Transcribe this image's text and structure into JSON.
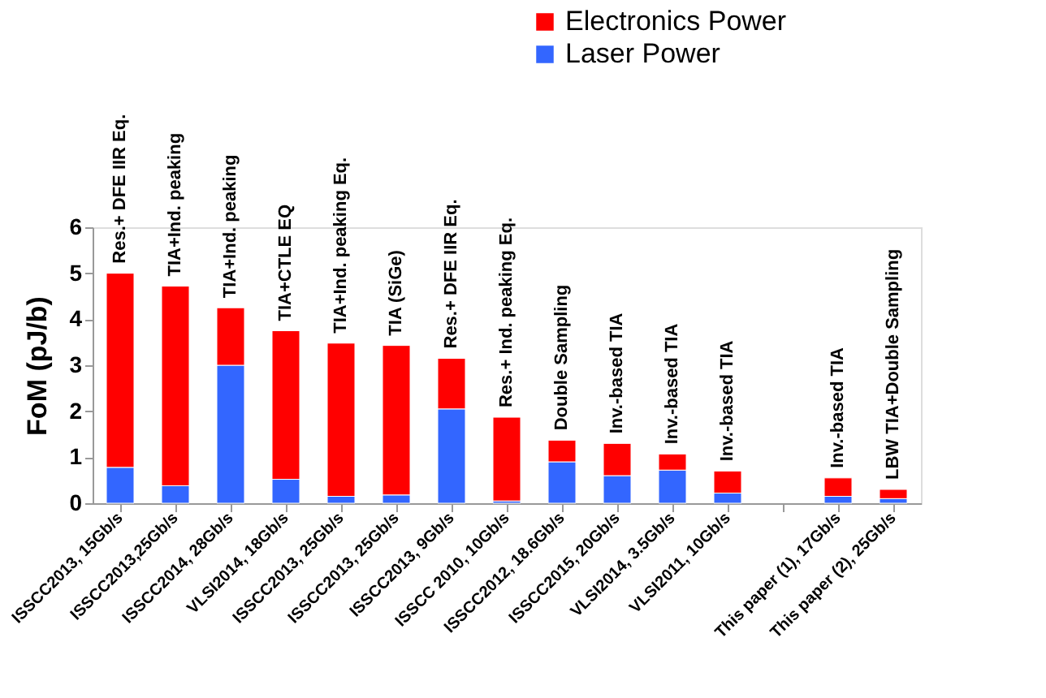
{
  "chart_data": {
    "type": "bar",
    "stacked": true,
    "ylabel": "FoM (pJ/b)",
    "ylim": [
      0,
      6
    ],
    "yticks": [
      0,
      1,
      2,
      3,
      4,
      5,
      6
    ],
    "grid": false,
    "legend": "top right",
    "categories": [
      "ISSCC2013, 15Gb/s",
      "ISSCC2013,25Gb/s",
      "ISSCC2014, 28Gb/s",
      "VLSI2014, 18Gb/s",
      "ISSCC2013, 25Gb/s",
      "ISSCC2013, 25Gb/s",
      "ISSCC2013, 9Gb/s",
      "ISSCC 2010, 10Gb/s",
      "ISSCC2012, 18.6Gb/s",
      "ISSCC2015, 20Gb/s",
      "VLSI2014, 3.5Gb/s",
      "VLSI2011, 10Gb/s",
      null,
      "This paper (1), 17Gb/s",
      "This paper (2), 25Gb/s"
    ],
    "series": [
      {
        "name": "Laser Power",
        "color": "#3366ff",
        "values": [
          0.78,
          0.38,
          3.0,
          0.52,
          0.15,
          0.18,
          2.05,
          0.05,
          0.9,
          0.6,
          0.72,
          0.22,
          null,
          0.15,
          0.1
        ]
      },
      {
        "name": "Electronics Power",
        "color": "#ff0000",
        "values": [
          4.22,
          4.34,
          1.25,
          3.23,
          3.33,
          3.25,
          1.1,
          1.82,
          0.47,
          0.7,
          0.35,
          0.48,
          null,
          0.4,
          0.2
        ]
      }
    ],
    "annotations": [
      {
        "text": "Res.+ DFE IIR Eq.",
        "x": "ISSCC2013, 15Gb/s",
        "y": 5.0
      },
      {
        "text": "TIA+Ind. peaking",
        "x": "ISSCC2013,25Gb/s",
        "y": 4.72
      },
      {
        "text": "TIA+Ind. peaking",
        "x": "ISSCC2014, 28Gb/s",
        "y": 4.25
      },
      {
        "text": "TIA+CTLE EQ",
        "x": "VLSI2014, 18Gb/s",
        "y": 3.75
      },
      {
        "text": "TIA+Ind. peaking Eq.",
        "x": "ISSCC2013, 25Gb/s",
        "y": 3.48
      },
      {
        "text": "TIA (SiGe)",
        "x": "ISSCC2013, 25Gb/s",
        "y": 3.43
      },
      {
        "text": "Res.+ DFE IIR Eq.",
        "x": "ISSCC2013, 9Gb/s",
        "y": 3.15
      },
      {
        "text": "Res.+ Ind. peaking Eq.",
        "x": "ISSCC 2010, 10Gb/s",
        "y": 1.87
      },
      {
        "text": "Double Sampling",
        "x": "ISSCC2012, 18.6Gb/s",
        "y": 1.37
      },
      {
        "text": "Inv.-based  TIA",
        "x": "ISSCC2015, 20Gb/s",
        "y": 1.3
      },
      {
        "text": "Inv.-based TIA",
        "x": "VLSI2014, 3.5Gb/s",
        "y": 1.07
      },
      {
        "text": "Inv.-based  TIA",
        "x": "VLSI2011, 10Gb/s",
        "y": 0.7
      },
      {
        "text": "Inv.-based TIA",
        "x": "This paper (1), 17Gb/s",
        "y": 0.55
      },
      {
        "text": "LBW TIA+Double Sampling",
        "x": "This paper (2), 25Gb/s",
        "y": 0.3
      }
    ]
  }
}
